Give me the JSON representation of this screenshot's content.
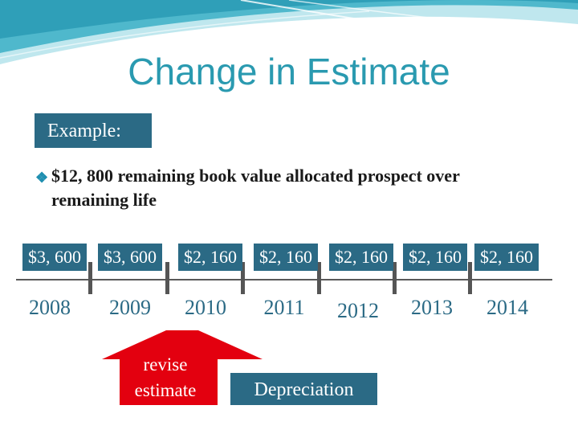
{
  "title": "Change in Estimate",
  "example_label": "Example:",
  "bullet": {
    "icon": "diamond-bullet-icon",
    "text_line1": "$12, 800 remaining book value allocated prospect over",
    "text_line2": "remaining life"
  },
  "amounts": [
    "$3, 600",
    "$3, 600",
    "$2, 160",
    "$2, 160",
    "$2, 160",
    "$2, 160",
    "$2, 160"
  ],
  "years": [
    "2008",
    "2009",
    "2010",
    "2011",
    "2012",
    "2013",
    "2014"
  ],
  "revise_label": "revise estimate",
  "depreciation_label": "Depreciation",
  "colors": {
    "title": "#2a9ab0",
    "box": "#2b6a85",
    "arrow": "#e3000f",
    "wave_light": "#bfe7ee",
    "wave_dark": "#4fb8cc"
  }
}
